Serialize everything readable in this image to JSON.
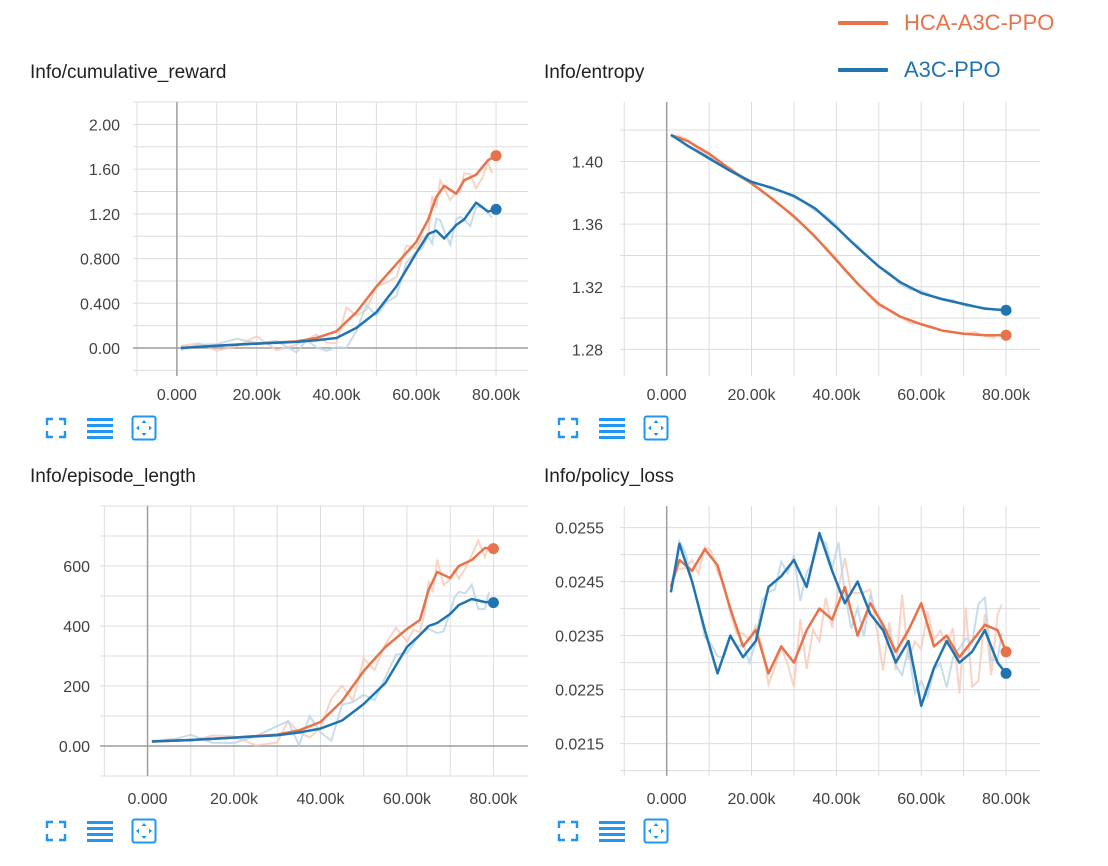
{
  "colors": {
    "hca": "#e8734a",
    "a3c": "#2274b0",
    "hca_light": "#f7c8b6",
    "a3c_light": "#b8d4ea",
    "grid": "#dddddd",
    "axis": "#9e9e9e",
    "tools": "#2196f3"
  },
  "legend": [
    {
      "label": "HCA-A3C-PPO",
      "color": "#e8734a"
    },
    {
      "label": "A3C-PPO",
      "color": "#2274b0"
    }
  ],
  "tool_icons": [
    "fit-to-screen-icon",
    "toggle-log-scale-icon",
    "fit-domain-icon"
  ],
  "chart_data": [
    {
      "type": "line",
      "title": "Info/cumulative_reward",
      "xticks": [
        "0.000",
        "20.00k",
        "40.00k",
        "60.00k",
        "80.00k"
      ],
      "yticks": [
        "0.00",
        "0.400",
        "0.800",
        "1.20",
        "1.60",
        "2.00"
      ],
      "xlim": [
        -11000,
        88000
      ],
      "ylim": [
        -0.25,
        2.2
      ],
      "series": [
        {
          "name": "HCA-A3C-PPO",
          "color_key": "hca",
          "x": [
            1000,
            10000,
            20000,
            30000,
            35000,
            40000,
            45000,
            50000,
            55000,
            60000,
            63000,
            65000,
            67000,
            70000,
            72000,
            75000,
            78000,
            80000
          ],
          "y": [
            0.0,
            0.02,
            0.04,
            0.06,
            0.09,
            0.15,
            0.32,
            0.55,
            0.75,
            0.95,
            1.15,
            1.35,
            1.45,
            1.38,
            1.5,
            1.55,
            1.68,
            1.72
          ]
        },
        {
          "name": "A3C-PPO",
          "color_key": "a3c",
          "x": [
            1000,
            10000,
            20000,
            30000,
            35000,
            40000,
            45000,
            50000,
            55000,
            60000,
            63000,
            65000,
            67000,
            70000,
            72000,
            75000,
            78000,
            80000
          ],
          "y": [
            0.0,
            0.02,
            0.04,
            0.055,
            0.07,
            0.09,
            0.18,
            0.32,
            0.55,
            0.85,
            1.02,
            1.05,
            0.98,
            1.1,
            1.15,
            1.3,
            1.22,
            1.24
          ]
        }
      ]
    },
    {
      "type": "line",
      "title": "Info/entropy",
      "xticks": [
        "0.000",
        "20.00k",
        "40.00k",
        "60.00k",
        "80.00k"
      ],
      "yticks": [
        "1.28",
        "1.32",
        "1.36",
        "1.40"
      ],
      "xlim": [
        -11000,
        88000
      ],
      "ylim": [
        1.263,
        1.438
      ],
      "series": [
        {
          "name": "HCA-A3C-PPO",
          "color_key": "hca",
          "x": [
            1000,
            5000,
            10000,
            15000,
            20000,
            25000,
            30000,
            35000,
            40000,
            45000,
            50000,
            55000,
            60000,
            65000,
            70000,
            75000,
            80000
          ],
          "y": [
            1.417,
            1.413,
            1.405,
            1.395,
            1.386,
            1.376,
            1.365,
            1.352,
            1.337,
            1.322,
            1.309,
            1.301,
            1.296,
            1.292,
            1.29,
            1.289,
            1.289
          ]
        },
        {
          "name": "A3C-PPO",
          "color_key": "a3c",
          "x": [
            1000,
            5000,
            10000,
            15000,
            20000,
            25000,
            30000,
            35000,
            40000,
            45000,
            50000,
            55000,
            60000,
            65000,
            70000,
            75000,
            80000
          ],
          "y": [
            1.417,
            1.41,
            1.402,
            1.394,
            1.387,
            1.383,
            1.378,
            1.37,
            1.358,
            1.345,
            1.333,
            1.323,
            1.316,
            1.312,
            1.309,
            1.306,
            1.305
          ]
        }
      ]
    },
    {
      "type": "line",
      "title": "Info/episode_length",
      "xticks": [
        "0.000",
        "20.00k",
        "40.00k",
        "60.00k",
        "80.00k"
      ],
      "yticks": [
        "0.00",
        "200",
        "400",
        "600"
      ],
      "xlim": [
        -11000,
        88000
      ],
      "ylim": [
        -100,
        800
      ],
      "series": [
        {
          "name": "HCA-A3C-PPO",
          "color_key": "hca",
          "x": [
            1000,
            10000,
            20000,
            30000,
            35000,
            40000,
            45000,
            50000,
            55000,
            60000,
            63000,
            65000,
            67000,
            70000,
            72000,
            75000,
            78000,
            80000
          ],
          "y": [
            15,
            20,
            28,
            38,
            52,
            80,
            150,
            250,
            330,
            390,
            420,
            520,
            580,
            560,
            600,
            620,
            660,
            658
          ]
        },
        {
          "name": "A3C-PPO",
          "color_key": "a3c",
          "x": [
            1000,
            10000,
            20000,
            30000,
            35000,
            40000,
            45000,
            50000,
            55000,
            60000,
            63000,
            65000,
            67000,
            70000,
            72000,
            75000,
            78000,
            80000
          ],
          "y": [
            15,
            20,
            28,
            36,
            45,
            58,
            85,
            140,
            210,
            330,
            370,
            400,
            410,
            440,
            470,
            490,
            480,
            478
          ]
        }
      ]
    },
    {
      "type": "line",
      "title": "Info/policy_loss",
      "xticks": [
        "0.000",
        "20.00k",
        "40.00k",
        "60.00k",
        "80.00k"
      ],
      "yticks": [
        "0.0215",
        "0.0225",
        "0.0235",
        "0.0245",
        "0.0255"
      ],
      "xlim": [
        -11000,
        88000
      ],
      "ylim": [
        0.0209,
        0.0259
      ],
      "series": [
        {
          "name": "HCA-A3C-PPO",
          "color_key": "hca",
          "x": [
            1000,
            3000,
            6000,
            9000,
            12000,
            15000,
            18000,
            21000,
            24000,
            27000,
            30000,
            33000,
            36000,
            39000,
            42000,
            45000,
            48000,
            51000,
            54000,
            57000,
            60000,
            63000,
            66000,
            69000,
            72000,
            75000,
            78000,
            80000
          ],
          "y": [
            0.0244,
            0.0249,
            0.0247,
            0.0251,
            0.0248,
            0.024,
            0.0233,
            0.0236,
            0.0228,
            0.0233,
            0.023,
            0.0236,
            0.024,
            0.0238,
            0.0244,
            0.0235,
            0.0241,
            0.0237,
            0.0232,
            0.0236,
            0.0241,
            0.0233,
            0.0235,
            0.0231,
            0.0234,
            0.0237,
            0.0236,
            0.0232
          ]
        },
        {
          "name": "A3C-PPO",
          "color_key": "a3c",
          "x": [
            1000,
            3000,
            6000,
            9000,
            12000,
            15000,
            18000,
            21000,
            24000,
            27000,
            30000,
            33000,
            36000,
            39000,
            42000,
            45000,
            48000,
            51000,
            54000,
            57000,
            60000,
            63000,
            66000,
            69000,
            72000,
            75000,
            78000,
            80000
          ],
          "y": [
            0.0243,
            0.0252,
            0.0245,
            0.0236,
            0.0228,
            0.0235,
            0.0231,
            0.0234,
            0.0244,
            0.0246,
            0.0249,
            0.0244,
            0.0254,
            0.0247,
            0.0241,
            0.0245,
            0.0239,
            0.0236,
            0.023,
            0.0234,
            0.0222,
            0.0229,
            0.0234,
            0.023,
            0.0232,
            0.0236,
            0.023,
            0.0228
          ]
        }
      ]
    }
  ]
}
